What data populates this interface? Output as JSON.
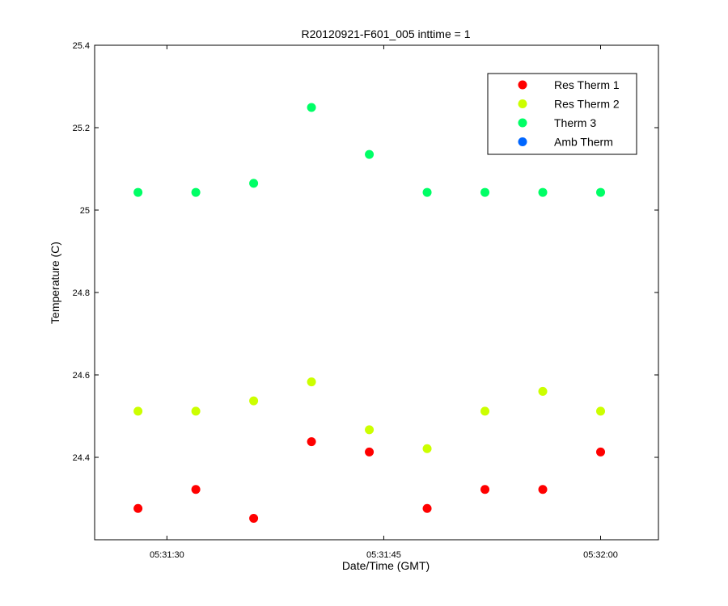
{
  "chart_data": {
    "type": "scatter",
    "title": "R20120921-F601_005 inttime = 1",
    "xlabel": "Date/Time (GMT)",
    "ylabel": "Temperature (C)",
    "x_type": "time",
    "xlim": [
      "05:31:25",
      "05:32:04"
    ],
    "ylim": [
      24.2,
      25.4
    ],
    "x_ticks": [
      "05:31:30",
      "05:31:45",
      "05:32:00"
    ],
    "y_ticks": [
      "24.4",
      "24.6",
      "24.8",
      "25",
      "25.2",
      "25.4"
    ],
    "grid": false,
    "legend_position": "top-right",
    "x": [
      "05:31:28",
      "05:31:32",
      "05:31:36",
      "05:31:40",
      "05:31:44",
      "05:31:48",
      "05:31:52",
      "05:31:56",
      "05:32:00"
    ],
    "series": [
      {
        "name": "Res Therm 1",
        "color": "#ff0000",
        "values": [
          24.276,
          24.322,
          24.252,
          24.438,
          24.413,
          24.276,
          24.322,
          24.322,
          24.413
        ]
      },
      {
        "name": "Res Therm 2",
        "color": "#ccff00",
        "values": [
          24.512,
          24.512,
          24.537,
          24.583,
          24.467,
          24.421,
          24.512,
          24.56,
          24.512
        ]
      },
      {
        "name": "Therm 3",
        "color": "#00ff66",
        "values": [
          25.043,
          25.043,
          25.065,
          25.249,
          25.135,
          25.043,
          25.043,
          25.043,
          25.043
        ]
      },
      {
        "name": "Amb Therm",
        "color": "#0066ff",
        "values": []
      }
    ]
  }
}
